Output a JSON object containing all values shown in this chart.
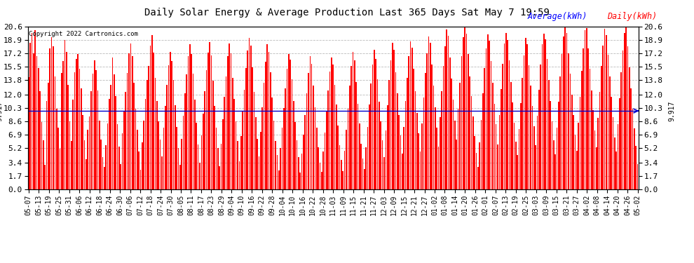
{
  "title": "Daily Solar Energy & Average Production Last 365 Days Sat May 7 19:59",
  "copyright": "Copyright 2022 Cartronics.com",
  "average_value": 9.917,
  "yticks": [
    0.0,
    1.7,
    3.4,
    5.2,
    6.9,
    8.6,
    10.3,
    12.0,
    13.8,
    15.5,
    17.2,
    18.9,
    20.6
  ],
  "ymax": 20.6,
  "ymin": 0.0,
  "bar_color": "#ff0000",
  "avg_line_color": "#0000cc",
  "legend_avg_color": "#0000ff",
  "legend_daily_color": "#ff0000",
  "title_color": "#000000",
  "copyright_color": "#000000",
  "background_color": "#ffffff",
  "grid_color": "#bbbbbb",
  "xtick_labels": [
    "05-07",
    "05-13",
    "05-19",
    "05-25",
    "05-31",
    "06-06",
    "06-12",
    "06-18",
    "06-24",
    "06-30",
    "07-06",
    "07-12",
    "07-18",
    "07-24",
    "07-30",
    "08-05",
    "08-11",
    "08-17",
    "08-23",
    "08-29",
    "09-04",
    "09-10",
    "09-16",
    "09-22",
    "09-28",
    "10-04",
    "10-10",
    "10-16",
    "10-22",
    "10-28",
    "11-03",
    "11-09",
    "11-15",
    "11-21",
    "11-27",
    "12-03",
    "12-09",
    "12-15",
    "12-21",
    "12-27",
    "01-02",
    "01-08",
    "01-14",
    "01-20",
    "01-26",
    "02-01",
    "02-07",
    "02-13",
    "02-19",
    "02-25",
    "03-03",
    "03-09",
    "03-15",
    "03-21",
    "03-27",
    "04-02",
    "04-08",
    "04-14",
    "04-20",
    "04-26",
    "05-02"
  ],
  "daily_values": [
    14.2,
    18.5,
    19.8,
    17.2,
    20.1,
    16.8,
    15.3,
    12.4,
    8.5,
    6.2,
    3.1,
    11.2,
    13.5,
    17.8,
    19.2,
    18.1,
    14.3,
    10.2,
    7.8,
    5.1,
    14.7,
    16.2,
    18.9,
    17.4,
    13.2,
    8.6,
    6.1,
    11.3,
    14.8,
    16.5,
    17.1,
    15.2,
    12.8,
    9.4,
    6.2,
    3.8,
    7.5,
    9.2,
    12.4,
    14.6,
    16.3,
    15.1,
    12.5,
    8.7,
    6.3,
    4.1,
    2.8,
    5.6,
    8.3,
    11.4,
    13.2,
    16.7,
    14.5,
    11.8,
    8.2,
    5.4,
    3.2,
    7.1,
    9.8,
    12.3,
    14.7,
    17.2,
    18.4,
    16.8,
    13.5,
    10.2,
    7.5,
    4.8,
    2.5,
    5.9,
    8.7,
    11.4,
    13.8,
    15.6,
    18.2,
    19.5,
    17.3,
    14.1,
    11.2,
    8.6,
    6.3,
    4.2,
    7.8,
    10.5,
    13.2,
    15.7,
    17.4,
    16.2,
    13.8,
    10.6,
    7.9,
    5.2,
    3.1,
    6.4,
    9.3,
    12.1,
    14.5,
    16.8,
    18.3,
    17.1,
    14.6,
    11.3,
    8.4,
    5.7,
    3.4,
    6.8,
    9.6,
    12.4,
    15.1,
    17.3,
    18.6,
    16.9,
    13.7,
    10.5,
    7.8,
    5.2,
    2.9,
    5.8,
    8.9,
    11.7,
    14.3,
    16.8,
    18.4,
    17.2,
    14.1,
    11.4,
    8.6,
    6.1,
    3.5,
    6.7,
    9.8,
    12.6,
    15.3,
    17.5,
    19.1,
    18.2,
    15.4,
    12.3,
    9.1,
    6.4,
    4.2,
    7.3,
    10.4,
    13.5,
    16.1,
    18.3,
    17.4,
    14.8,
    11.6,
    8.7,
    6.1,
    4.3,
    2.4,
    5.2,
    7.8,
    10.3,
    12.8,
    15.2,
    17.1,
    16.4,
    13.9,
    11.2,
    8.5,
    6.2,
    4.1,
    2.1,
    4.5,
    6.9,
    9.4,
    12.1,
    14.7,
    16.8,
    15.9,
    13.1,
    10.4,
    7.8,
    5.3,
    3.4,
    2.2,
    4.8,
    7.2,
    9.9,
    12.5,
    14.9,
    16.7,
    15.8,
    13.2,
    10.7,
    8.1,
    5.6,
    3.7,
    2.3,
    4.9,
    7.5,
    10.2,
    13.1,
    15.6,
    17.4,
    16.3,
    13.6,
    10.8,
    8.3,
    5.8,
    3.9,
    2.6,
    5.3,
    7.9,
    10.7,
    13.4,
    15.8,
    17.6,
    16.5,
    13.9,
    11.1,
    8.6,
    6.2,
    4.1,
    7.4,
    10.6,
    13.8,
    16.3,
    18.5,
    17.6,
    14.8,
    12.1,
    9.4,
    6.8,
    4.5,
    7.9,
    11.2,
    14.1,
    16.8,
    18.7,
    17.9,
    15.2,
    12.4,
    9.7,
    7.1,
    4.8,
    8.3,
    11.6,
    14.7,
    17.2,
    19.3,
    18.5,
    15.8,
    13.1,
    10.4,
    7.8,
    5.4,
    9.1,
    12.4,
    15.6,
    18.1,
    20.2,
    19.4,
    16.7,
    14.0,
    11.3,
    8.7,
    6.3,
    10.2,
    13.5,
    16.8,
    19.2,
    20.5,
    19.7,
    17.1,
    14.3,
    11.8,
    9.2,
    6.7,
    4.6,
    2.8,
    5.9,
    8.8,
    12.1,
    15.3,
    17.8,
    19.6,
    18.8,
    16.2,
    13.5,
    10.8,
    8.2,
    5.7,
    9.4,
    12.7,
    15.9,
    18.4,
    19.8,
    18.9,
    16.3,
    13.6,
    11.0,
    8.4,
    6.0,
    4.3,
    7.6,
    10.9,
    14.1,
    16.9,
    19.1,
    18.3,
    15.7,
    13.1,
    10.5,
    8.0,
    5.6,
    9.3,
    12.6,
    15.8,
    18.3,
    19.7,
    19.0,
    16.5,
    13.8,
    11.2,
    8.6,
    6.2,
    4.4,
    7.8,
    11.1,
    14.3,
    17.1,
    19.3,
    20.6,
    19.8,
    17.2,
    14.6,
    12.0,
    9.4,
    6.9,
    4.9,
    8.4,
    11.7,
    15.0,
    17.8,
    20.1,
    20.4,
    17.8,
    15.2,
    12.5,
    10.0,
    7.4,
    5.3,
    9.0,
    12.3,
    15.6,
    18.2,
    20.3,
    19.5,
    17.0,
    14.3,
    11.7,
    9.1,
    6.6,
    4.8,
    8.2,
    11.5,
    14.8,
    17.5,
    19.8,
    20.6,
    18.1,
    15.4,
    12.8,
    10.2,
    7.7,
    5.5,
    3.2
  ]
}
